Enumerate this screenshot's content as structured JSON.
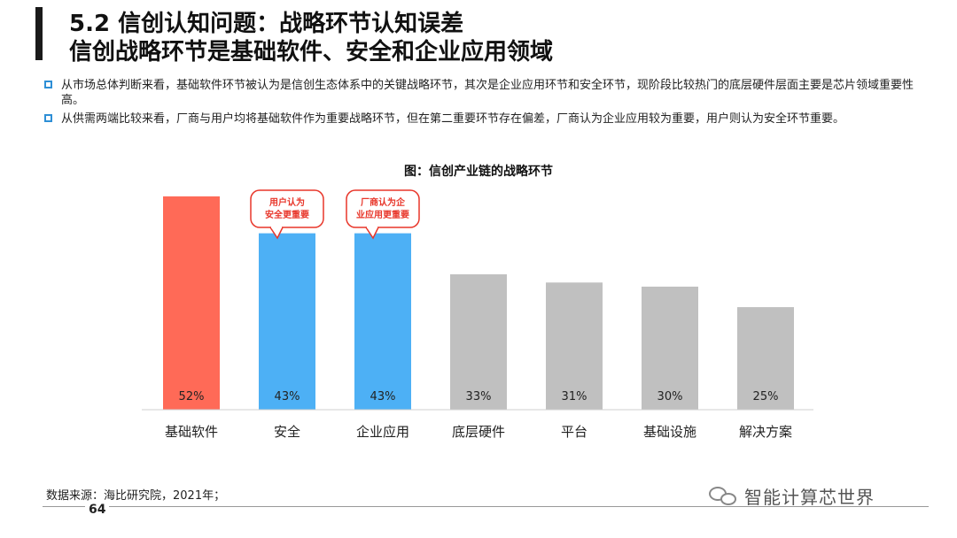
{
  "header": {
    "title_line1": "5.2 信创认知问题：战略环节认知误差",
    "title_line2": "信创战略环节是基础软件、安全和企业应用领域"
  },
  "bullets": [
    "从市场总体判断来看，基础软件环节被认为是信创生态体系中的关键战略环节，其次是企业应用环节和安全环节，现阶段比较热门的底层硬件层面主要是芯片领域重要性高。",
    "从供需两端比较来看，厂商与用户均将基础软件作为重要战略环节，但在第二重要环节存在偏差，厂商认为企业应用较为重要，用户则认为安全环节重要。"
  ],
  "chart_data": {
    "type": "bar",
    "title": "图：信创产业链的战略环节",
    "categories": [
      "基础软件",
      "安全",
      "企业应用",
      "底层硬件",
      "平台",
      "基础设施",
      "解决方案"
    ],
    "values": [
      52,
      43,
      43,
      33,
      31,
      30,
      25
    ],
    "value_labels": [
      "52%",
      "43%",
      "43%",
      "33%",
      "31%",
      "30%",
      "25%"
    ],
    "bar_colors": [
      "#ff6a57",
      "#4db0f5",
      "#4db0f5",
      "#c0c0c0",
      "#c0c0c0",
      "#c0c0c0",
      "#c0c0c0"
    ],
    "ylim": [
      0,
      55
    ],
    "grid": false,
    "annotations": [
      {
        "category": "安全",
        "text": "用户认为安全更重要"
      },
      {
        "category": "企业应用",
        "text": "厂商认为企业应用更重要"
      }
    ],
    "annotation_color": "#e8362a"
  },
  "footer": {
    "source": "数据来源：海比研究院，2021年；",
    "page": "64",
    "watermark": "智能计算芯世界"
  }
}
